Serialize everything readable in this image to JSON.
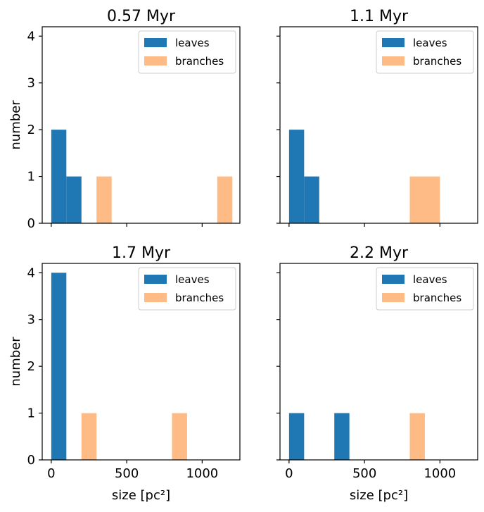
{
  "chart_data": [
    {
      "type": "bar",
      "title": "0.57 Myr",
      "xlabel": "",
      "ylabel": "number",
      "xlim": [
        -60,
        1250
      ],
      "ylim": [
        0,
        4.2
      ],
      "xticks": [
        0,
        500,
        1000
      ],
      "yticks": [
        0,
        1,
        2,
        3,
        4
      ],
      "show_xticklabels": false,
      "show_yticklabels": true,
      "legend": {
        "position": "top-right",
        "entries": [
          "leaves",
          "branches"
        ]
      },
      "series": [
        {
          "name": "leaves",
          "color": "#1f77b4",
          "bins": [
            {
              "x0": 0,
              "x1": 100,
              "count": 2
            },
            {
              "x0": 100,
              "x1": 200,
              "count": 1
            }
          ]
        },
        {
          "name": "branches",
          "color": "#ffbb85",
          "bins": [
            {
              "x0": 300,
              "x1": 400,
              "count": 1
            },
            {
              "x0": 1100,
              "x1": 1200,
              "count": 1
            }
          ]
        }
      ]
    },
    {
      "type": "bar",
      "title": "1.1 Myr",
      "xlabel": "",
      "ylabel": "",
      "xlim": [
        -60,
        1250
      ],
      "ylim": [
        0,
        4.2
      ],
      "xticks": [
        0,
        500,
        1000
      ],
      "yticks": [
        0,
        1,
        2,
        3,
        4
      ],
      "show_xticklabels": false,
      "show_yticklabels": false,
      "legend": {
        "position": "top-right",
        "entries": [
          "leaves",
          "branches"
        ]
      },
      "series": [
        {
          "name": "leaves",
          "color": "#1f77b4",
          "bins": [
            {
              "x0": 0,
              "x1": 100,
              "count": 2
            },
            {
              "x0": 100,
              "x1": 200,
              "count": 1
            }
          ]
        },
        {
          "name": "branches",
          "color": "#ffbb85",
          "bins": [
            {
              "x0": 800,
              "x1": 1000,
              "count": 1
            }
          ]
        }
      ]
    },
    {
      "type": "bar",
      "title": "1.7 Myr",
      "xlabel": "size [pc²]",
      "ylabel": "number",
      "xlim": [
        -60,
        1250
      ],
      "ylim": [
        0,
        4.2
      ],
      "xticks": [
        0,
        500,
        1000
      ],
      "yticks": [
        0,
        1,
        2,
        3,
        4
      ],
      "show_xticklabels": true,
      "show_yticklabels": true,
      "legend": {
        "position": "top-right",
        "entries": [
          "leaves",
          "branches"
        ]
      },
      "series": [
        {
          "name": "leaves",
          "color": "#1f77b4",
          "bins": [
            {
              "x0": 0,
              "x1": 100,
              "count": 4
            }
          ]
        },
        {
          "name": "branches",
          "color": "#ffbb85",
          "bins": [
            {
              "x0": 200,
              "x1": 300,
              "count": 1
            },
            {
              "x0": 800,
              "x1": 900,
              "count": 1
            }
          ]
        }
      ]
    },
    {
      "type": "bar",
      "title": "2.2 Myr",
      "xlabel": "size [pc²]",
      "ylabel": "",
      "xlim": [
        -60,
        1250
      ],
      "ylim": [
        0,
        4.2
      ],
      "xticks": [
        0,
        500,
        1000
      ],
      "yticks": [
        0,
        1,
        2,
        3,
        4
      ],
      "show_xticklabels": true,
      "show_yticklabels": false,
      "legend": {
        "position": "top-right",
        "entries": [
          "leaves",
          "branches"
        ]
      },
      "series": [
        {
          "name": "leaves",
          "color": "#1f77b4",
          "bins": [
            {
              "x0": 0,
              "x1": 100,
              "count": 1
            },
            {
              "x0": 300,
              "x1": 400,
              "count": 1
            }
          ]
        },
        {
          "name": "branches",
          "color": "#ffbb85",
          "bins": [
            {
              "x0": 800,
              "x1": 900,
              "count": 1
            }
          ]
        }
      ]
    }
  ]
}
